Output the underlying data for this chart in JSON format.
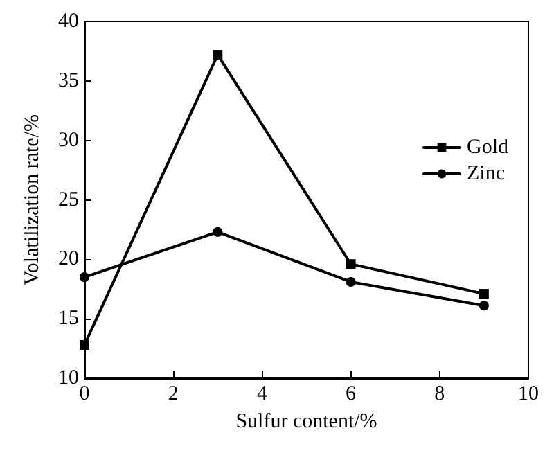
{
  "chart_data": {
    "type": "line",
    "xlabel": "Sulfur content/%",
    "ylabel": "Volatilization rate/%",
    "x": [
      0,
      3,
      6,
      9
    ],
    "series": [
      {
        "name": "Gold",
        "color": "#000000",
        "marker": "square",
        "values": [
          12.8,
          37.2,
          19.6,
          17.1
        ]
      },
      {
        "name": "Zinc",
        "color": "#000000",
        "marker": "circle",
        "values": [
          18.5,
          22.3,
          18.1,
          16.1
        ]
      }
    ],
    "xlim": [
      0,
      10
    ],
    "xticks": [
      0,
      2,
      4,
      6,
      8,
      10
    ],
    "ylim": [
      10,
      40
    ],
    "yticks": [
      10,
      15,
      20,
      25,
      30,
      35,
      40
    ],
    "grid": false,
    "legend": "right",
    "line_style": "solid"
  }
}
